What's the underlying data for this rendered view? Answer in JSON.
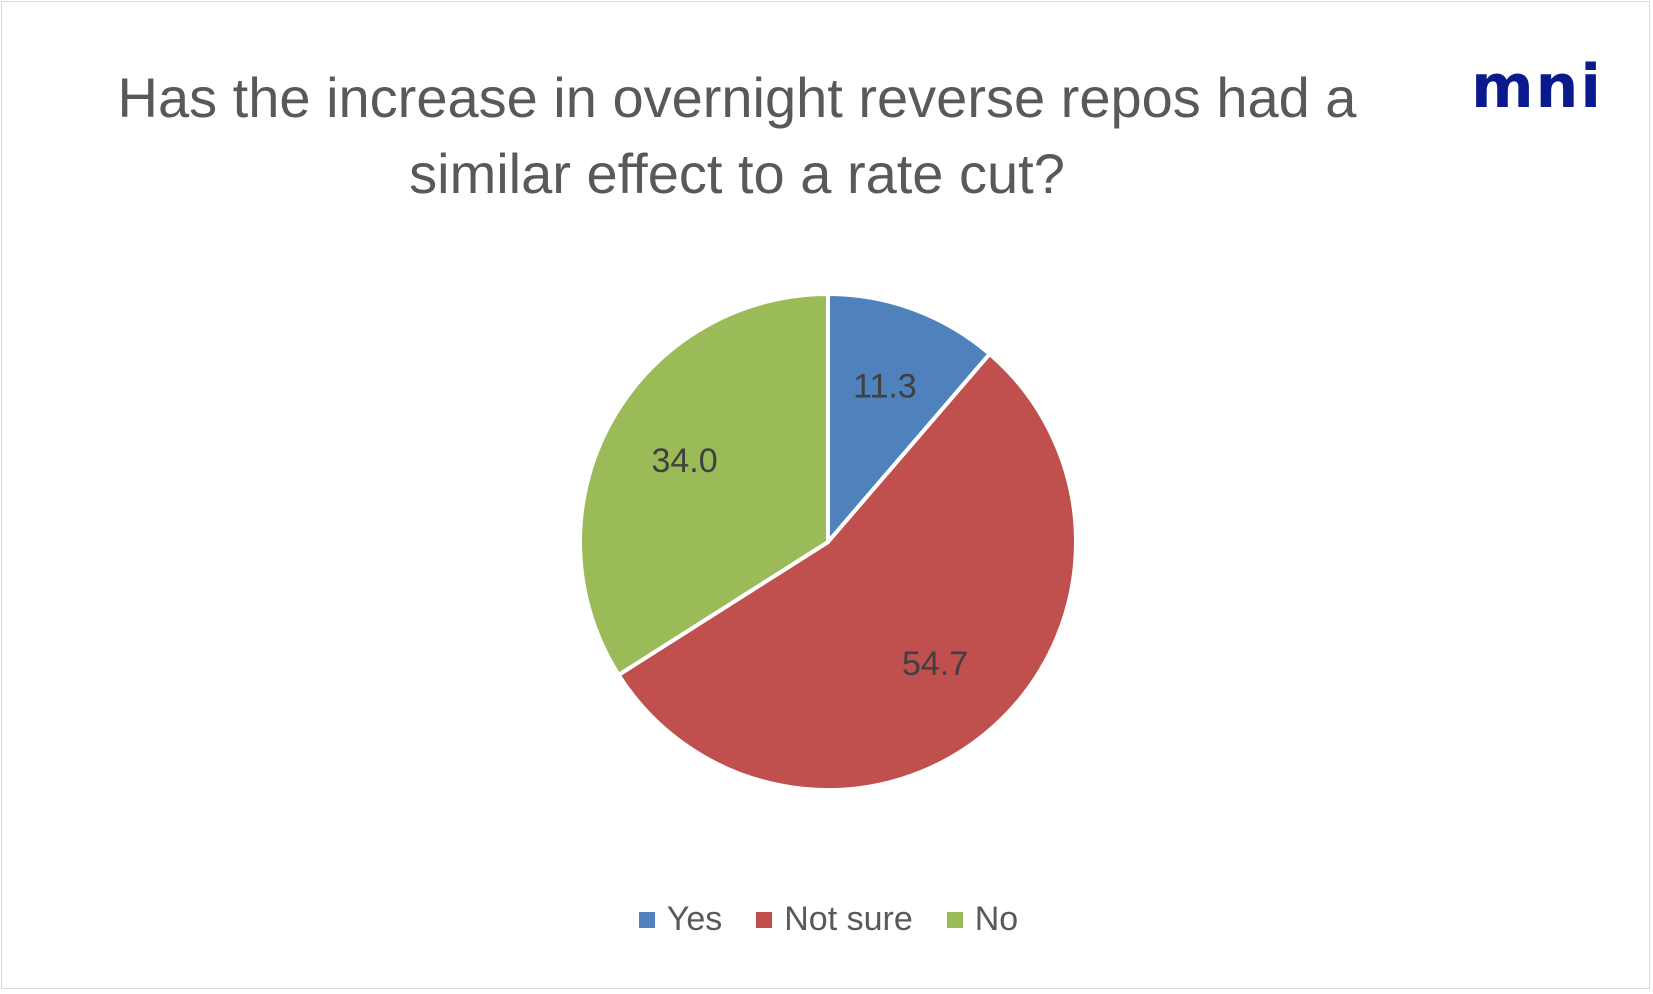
{
  "chart_data": {
    "type": "pie",
    "title": "Has the increase in overnight reverse repos had a similar effect to a rate cut?",
    "title_lines": [
      "Has the increase in overnight reverse repos had a",
      "similar effect to a rate cut?"
    ],
    "categories": [
      "Yes",
      "Not sure",
      "No"
    ],
    "values": [
      11.3,
      54.7,
      34.0
    ],
    "value_labels": [
      "11.3",
      "54.7",
      "34.0"
    ],
    "colors": [
      "#4f81bd",
      "#c0504d",
      "#9bbb59"
    ],
    "legend_position": "bottom",
    "start_angle": "12 o'clock, clockwise"
  },
  "logo": {
    "text": "mni",
    "color": "#0a1a8c"
  }
}
